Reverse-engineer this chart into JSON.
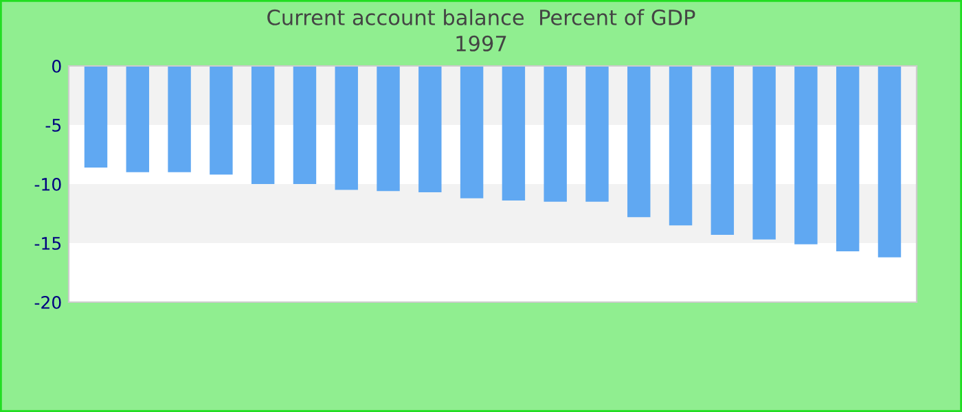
{
  "chart_data": {
    "type": "bar",
    "title": "Current account balance  Percent of GDP",
    "subtitle": "1997",
    "categories": [
      null,
      null,
      null,
      null,
      null,
      null,
      null,
      null,
      null,
      null,
      null,
      null,
      null,
      null,
      null,
      null,
      null,
      null,
      null,
      null
    ],
    "values": [
      -8.6,
      -9.0,
      -9.0,
      -9.2,
      -10.0,
      -10.0,
      -10.5,
      -10.6,
      -10.7,
      -11.2,
      -11.4,
      -11.5,
      -11.5,
      -12.8,
      -13.5,
      -14.3,
      -14.7,
      -15.1,
      -15.7,
      -16.2
    ],
    "color": "#60a8f2",
    "ylim": [
      -20,
      0
    ],
    "yticks": [
      0,
      -5,
      -10,
      -15,
      -20
    ],
    "grid": false,
    "legend": false,
    "bands": [
      {
        "axis": "y",
        "from": 0,
        "to": -5,
        "color": "#f2f2f2"
      },
      {
        "axis": "y",
        "from": -10,
        "to": -15,
        "color": "#f2f2f2"
      }
    ]
  }
}
